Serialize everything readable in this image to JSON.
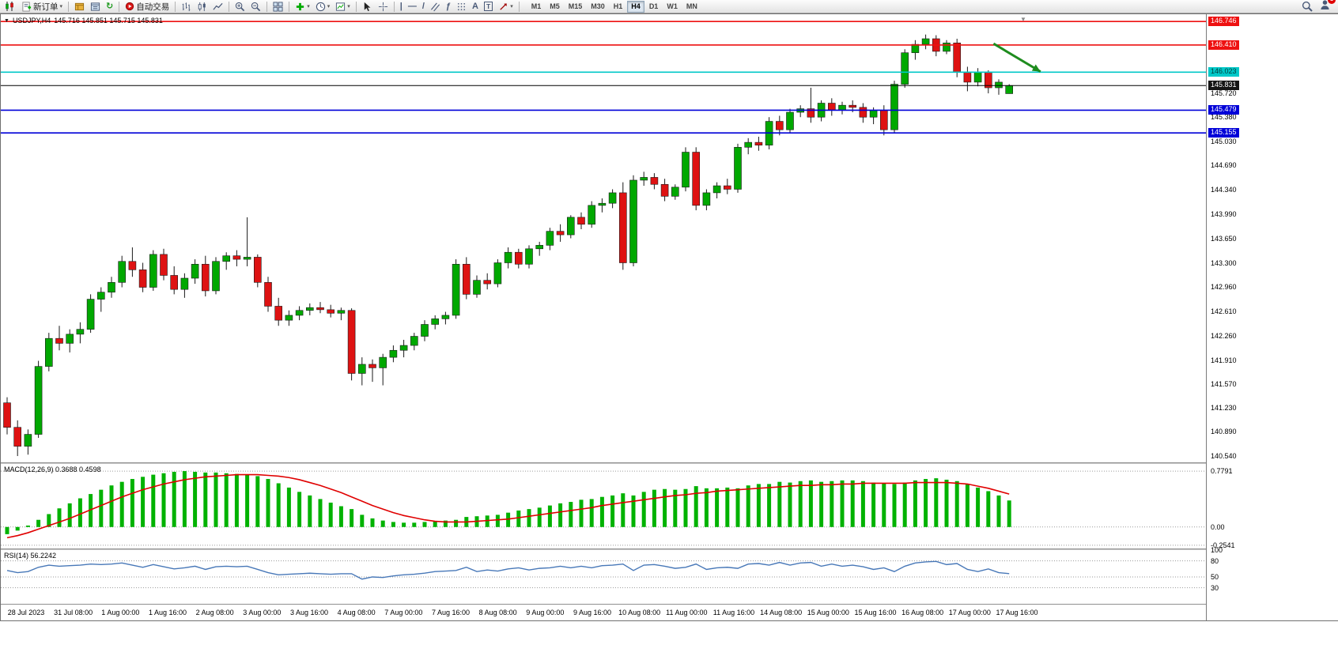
{
  "ui": {
    "caret_down": "▾",
    "triangle_down": "▼"
  },
  "toolbar": {
    "new_order": "新订单",
    "autotrading": "自动交易",
    "timeframes": [
      "M1",
      "M5",
      "M15",
      "M30",
      "H1",
      "H4",
      "D1",
      "W1",
      "MN"
    ],
    "active_timeframe": "H4",
    "account_badge": "1",
    "tool_glyphs": {
      "refresh": "↻",
      "vertical_line": "|",
      "horizontal_line": "—",
      "trendline": "/",
      "fibonacci": "ƒ",
      "text_tool": "A",
      "label_tool": "T"
    }
  },
  "chart": {
    "title": "USDJPY,H4",
    "ohlc": "145.716 145.851 145.715 145.831"
  },
  "chart_data": {
    "type": "candlestick",
    "symbol": "USDJPY",
    "timeframe": "H4",
    "last_ohlc": {
      "open": 145.716,
      "high": 145.851,
      "low": 145.715,
      "close": 145.831
    },
    "price_range": [
      140.45,
      146.85
    ],
    "price_ticks": [
      145.72,
      145.38,
      145.03,
      144.69,
      144.34,
      143.99,
      143.65,
      143.3,
      142.96,
      142.61,
      142.26,
      141.91,
      141.57,
      141.23,
      140.89,
      140.54
    ],
    "hlines": [
      {
        "price": 146.746,
        "color": "#EE1111",
        "width": 1.6,
        "label": "146.746",
        "bg": "#EE1111",
        "fg": "#FFFFFF"
      },
      {
        "price": 146.41,
        "color": "#EE1111",
        "width": 1.6,
        "label": "146.410",
        "bg": "#EE1111",
        "fg": "#FFFFFF"
      },
      {
        "price": 146.023,
        "color": "#00C8C8",
        "width": 1.6,
        "label": "146.023",
        "bg": "#00C8C8",
        "fg": "#003C3C"
      },
      {
        "price": 145.831,
        "color": "#000000",
        "width": 1.0,
        "label": "145.831",
        "bg": "#151515",
        "fg": "#FFFFFF"
      },
      {
        "price": 145.479,
        "color": "#0000D8",
        "width": 1.6,
        "label": "145.479",
        "bg": "#0000D8",
        "fg": "#FFFFFF"
      },
      {
        "price": 145.155,
        "color": "#0000D8",
        "width": 1.6,
        "label": "145.155",
        "bg": "#0000D8",
        "fg": "#FFFFFF"
      }
    ],
    "colors": {
      "bull": "#00A800",
      "bear": "#DE1212",
      "wick": "#1a1a1a",
      "bg": "#FFFFFF"
    },
    "candles": [
      [
        141.3,
        141.38,
        140.85,
        140.95
      ],
      [
        140.95,
        141.05,
        140.54,
        140.68
      ],
      [
        140.68,
        140.92,
        140.56,
        140.85
      ],
      [
        140.85,
        141.9,
        140.8,
        141.82
      ],
      [
        141.82,
        142.3,
        141.75,
        142.22
      ],
      [
        142.22,
        142.4,
        142.05,
        142.15
      ],
      [
        142.15,
        142.35,
        142.02,
        142.28
      ],
      [
        142.28,
        142.45,
        142.15,
        142.35
      ],
      [
        142.35,
        142.85,
        142.3,
        142.78
      ],
      [
        142.78,
        142.95,
        142.6,
        142.88
      ],
      [
        142.88,
        143.1,
        142.8,
        143.02
      ],
      [
        143.02,
        143.4,
        142.95,
        143.32
      ],
      [
        143.32,
        143.52,
        143.1,
        143.2
      ],
      [
        143.2,
        143.3,
        142.88,
        142.95
      ],
      [
        142.95,
        143.48,
        142.9,
        143.42
      ],
      [
        143.42,
        143.5,
        143.05,
        143.12
      ],
      [
        143.12,
        143.25,
        142.85,
        142.92
      ],
      [
        142.92,
        143.15,
        142.8,
        143.08
      ],
      [
        143.08,
        143.35,
        143.0,
        143.28
      ],
      [
        143.28,
        143.4,
        142.82,
        142.9
      ],
      [
        142.9,
        143.38,
        142.85,
        143.32
      ],
      [
        143.32,
        143.45,
        143.2,
        143.4
      ],
      [
        143.4,
        143.48,
        143.25,
        143.35
      ],
      [
        143.35,
        143.95,
        143.25,
        143.38
      ],
      [
        143.38,
        143.42,
        142.95,
        143.02
      ],
      [
        143.02,
        143.1,
        142.6,
        142.68
      ],
      [
        142.68,
        142.8,
        142.4,
        142.48
      ],
      [
        142.48,
        142.62,
        142.4,
        142.55
      ],
      [
        142.55,
        142.68,
        142.48,
        142.62
      ],
      [
        142.62,
        142.72,
        142.55,
        142.66
      ],
      [
        142.66,
        142.74,
        142.58,
        142.63
      ],
      [
        142.63,
        142.7,
        142.52,
        142.58
      ],
      [
        142.58,
        142.66,
        142.48,
        142.62
      ],
      [
        142.62,
        142.65,
        141.62,
        141.72
      ],
      [
        141.72,
        141.95,
        141.55,
        141.85
      ],
      [
        141.85,
        141.92,
        141.6,
        141.8
      ],
      [
        141.8,
        142.0,
        141.55,
        141.95
      ],
      [
        141.95,
        142.12,
        141.88,
        142.05
      ],
      [
        142.05,
        142.2,
        141.95,
        142.12
      ],
      [
        142.12,
        142.3,
        142.05,
        142.25
      ],
      [
        142.25,
        142.48,
        142.18,
        142.42
      ],
      [
        142.42,
        142.55,
        142.35,
        142.5
      ],
      [
        142.5,
        142.6,
        142.42,
        142.55
      ],
      [
        142.55,
        143.35,
        142.5,
        143.28
      ],
      [
        143.28,
        143.38,
        142.78,
        142.85
      ],
      [
        142.85,
        143.12,
        142.8,
        143.05
      ],
      [
        143.05,
        143.15,
        142.92,
        143.0
      ],
      [
        143.0,
        143.35,
        142.95,
        143.3
      ],
      [
        143.3,
        143.52,
        143.22,
        143.45
      ],
      [
        143.45,
        143.5,
        143.22,
        143.28
      ],
      [
        143.28,
        143.55,
        143.22,
        143.5
      ],
      [
        143.5,
        143.6,
        143.4,
        143.55
      ],
      [
        143.55,
        143.8,
        143.48,
        143.75
      ],
      [
        143.75,
        143.85,
        143.6,
        143.7
      ],
      [
        143.7,
        143.98,
        143.65,
        143.95
      ],
      [
        143.95,
        144.02,
        143.78,
        143.85
      ],
      [
        143.85,
        144.18,
        143.8,
        144.12
      ],
      [
        144.12,
        144.22,
        144.02,
        144.15
      ],
      [
        144.15,
        144.35,
        144.08,
        144.3
      ],
      [
        144.3,
        144.45,
        143.2,
        143.3
      ],
      [
        143.3,
        144.55,
        143.25,
        144.48
      ],
      [
        144.48,
        144.6,
        144.4,
        144.52
      ],
      [
        144.52,
        144.58,
        144.35,
        144.42
      ],
      [
        144.42,
        144.5,
        144.18,
        144.25
      ],
      [
        144.25,
        144.42,
        144.2,
        144.38
      ],
      [
        144.38,
        144.95,
        144.32,
        144.88
      ],
      [
        144.88,
        144.95,
        144.05,
        144.12
      ],
      [
        144.12,
        144.35,
        144.05,
        144.3
      ],
      [
        144.3,
        144.45,
        144.22,
        144.4
      ],
      [
        144.4,
        144.5,
        144.28,
        144.35
      ],
      [
        144.35,
        145.0,
        144.3,
        144.95
      ],
      [
        144.95,
        145.08,
        144.85,
        145.02
      ],
      [
        145.02,
        145.1,
        144.9,
        144.98
      ],
      [
        144.98,
        145.38,
        144.92,
        145.32
      ],
      [
        145.32,
        145.4,
        145.12,
        145.2
      ],
      [
        145.2,
        145.5,
        145.15,
        145.45
      ],
      [
        145.45,
        145.55,
        145.38,
        145.5
      ],
      [
        145.5,
        145.8,
        145.3,
        145.38
      ],
      [
        145.38,
        145.62,
        145.32,
        145.58
      ],
      [
        145.58,
        145.65,
        145.4,
        145.48
      ],
      [
        145.48,
        145.6,
        145.42,
        145.55
      ],
      [
        145.55,
        145.62,
        145.45,
        145.52
      ],
      [
        145.52,
        145.58,
        145.3,
        145.38
      ],
      [
        145.38,
        145.52,
        145.28,
        145.48
      ],
      [
        145.48,
        145.55,
        145.12,
        145.2
      ],
      [
        145.2,
        145.9,
        145.15,
        145.85
      ],
      [
        145.85,
        146.35,
        145.8,
        146.3
      ],
      [
        146.3,
        146.48,
        146.2,
        146.42
      ],
      [
        146.42,
        146.56,
        146.35,
        146.5
      ],
      [
        146.5,
        146.55,
        146.25,
        146.32
      ],
      [
        146.32,
        146.48,
        146.28,
        146.44
      ],
      [
        146.44,
        146.5,
        145.95,
        146.02
      ],
      [
        146.02,
        146.1,
        145.75,
        145.88
      ],
      [
        145.88,
        146.08,
        145.82,
        146.02
      ],
      [
        146.02,
        146.05,
        145.72,
        145.8
      ],
      [
        145.8,
        145.92,
        145.7,
        145.88
      ],
      [
        145.716,
        145.851,
        145.715,
        145.831
      ]
    ],
    "time_labels": [
      "28 Jul 2023",
      "31 Jul 08:00",
      "1 Aug 00:00",
      "1 Aug 16:00",
      "2 Aug 08:00",
      "3 Aug 00:00",
      "3 Aug 16:00",
      "4 Aug 08:00",
      "7 Aug 00:00",
      "7 Aug 16:00",
      "8 Aug 08:00",
      "9 Aug 00:00",
      "9 Aug 16:00",
      "10 Aug 08:00",
      "11 Aug 00:00",
      "11 Aug 16:00",
      "14 Aug 08:00",
      "15 Aug 00:00",
      "15 Aug 16:00",
      "16 Aug 08:00",
      "17 Aug 00:00",
      "17 Aug 16:00"
    ],
    "arrow": {
      "i1": 94.5,
      "p1": 146.43,
      "i2": 99,
      "p2": 146.03,
      "color": "#1E8C1E"
    },
    "indicators": {
      "macd": {
        "label": "MACD(12,26,9) 0.3688 0.4598",
        "params": "12,26,9",
        "value": 0.3688,
        "signal_value": 0.4598,
        "range": [
          -0.3,
          0.88
        ],
        "axis": [
          {
            "v": 0.7791,
            "t": "0.7791"
          },
          {
            "v": 0,
            "t": "0.00"
          },
          {
            "v": -0.2541,
            "t": "-0.2541"
          }
        ],
        "colors": {
          "hist": "#00B200",
          "signal": "#E00000"
        },
        "hist": [
          -0.1,
          -0.05,
          0.02,
          0.1,
          0.18,
          0.26,
          0.33,
          0.4,
          0.46,
          0.52,
          0.58,
          0.63,
          0.67,
          0.7,
          0.73,
          0.75,
          0.77,
          0.78,
          0.77,
          0.76,
          0.76,
          0.75,
          0.74,
          0.73,
          0.71,
          0.67,
          0.61,
          0.55,
          0.49,
          0.44,
          0.39,
          0.34,
          0.29,
          0.25,
          0.17,
          0.12,
          0.09,
          0.07,
          0.06,
          0.06,
          0.07,
          0.08,
          0.09,
          0.1,
          0.14,
          0.15,
          0.16,
          0.17,
          0.2,
          0.23,
          0.25,
          0.27,
          0.3,
          0.33,
          0.35,
          0.38,
          0.39,
          0.42,
          0.44,
          0.47,
          0.44,
          0.49,
          0.52,
          0.53,
          0.52,
          0.53,
          0.57,
          0.54,
          0.54,
          0.55,
          0.54,
          0.58,
          0.6,
          0.6,
          0.63,
          0.62,
          0.64,
          0.65,
          0.63,
          0.64,
          0.65,
          0.65,
          0.64,
          0.62,
          0.61,
          0.6,
          0.62,
          0.65,
          0.67,
          0.68,
          0.66,
          0.64,
          0.6,
          0.55,
          0.5,
          0.44,
          0.37
        ],
        "signal": [
          -0.15,
          -0.12,
          -0.08,
          -0.03,
          0.02,
          0.07,
          0.12,
          0.18,
          0.24,
          0.3,
          0.36,
          0.42,
          0.47,
          0.52,
          0.56,
          0.6,
          0.63,
          0.66,
          0.68,
          0.7,
          0.71,
          0.72,
          0.73,
          0.73,
          0.73,
          0.72,
          0.71,
          0.69,
          0.66,
          0.62,
          0.58,
          0.53,
          0.48,
          0.42,
          0.36,
          0.3,
          0.25,
          0.2,
          0.16,
          0.13,
          0.1,
          0.08,
          0.07,
          0.07,
          0.07,
          0.08,
          0.09,
          0.1,
          0.11,
          0.13,
          0.15,
          0.17,
          0.19,
          0.21,
          0.23,
          0.25,
          0.27,
          0.3,
          0.32,
          0.34,
          0.36,
          0.38,
          0.4,
          0.42,
          0.44,
          0.45,
          0.47,
          0.48,
          0.5,
          0.51,
          0.52,
          0.53,
          0.54,
          0.55,
          0.56,
          0.57,
          0.58,
          0.58,
          0.59,
          0.59,
          0.6,
          0.6,
          0.61,
          0.61,
          0.61,
          0.61,
          0.61,
          0.62,
          0.62,
          0.62,
          0.62,
          0.61,
          0.6,
          0.57,
          0.54,
          0.5,
          0.46
        ]
      },
      "rsi": {
        "label": "RSI(14) 56.2242",
        "period": 14,
        "value": 56.2242,
        "range": [
          0,
          100
        ],
        "levels": [
          80,
          50,
          30
        ],
        "axis": [
          {
            "v": 100,
            "t": "100"
          },
          {
            "v": 80,
            "t": "80"
          },
          {
            "v": 50,
            "t": "50"
          },
          {
            "v": 30,
            "t": "30"
          }
        ],
        "color": "#4878B8",
        "values": [
          62,
          58,
          60,
          68,
          72,
          70,
          71,
          72,
          74,
          73,
          74,
          76,
          72,
          68,
          73,
          69,
          65,
          67,
          70,
          64,
          69,
          70,
          69,
          70,
          64,
          58,
          54,
          55,
          56,
          57,
          56,
          55,
          56,
          56,
          46,
          50,
          49,
          52,
          54,
          55,
          57,
          60,
          61,
          62,
          68,
          60,
          63,
          61,
          65,
          67,
          63,
          66,
          67,
          70,
          67,
          70,
          67,
          71,
          72,
          74,
          62,
          72,
          73,
          70,
          66,
          68,
          74,
          64,
          67,
          68,
          66,
          74,
          75,
          72,
          77,
          72,
          76,
          77,
          70,
          74,
          70,
          72,
          69,
          64,
          67,
          60,
          70,
          76,
          78,
          79,
          73,
          75,
          64,
          60,
          65,
          58,
          56.2
        ]
      }
    }
  }
}
